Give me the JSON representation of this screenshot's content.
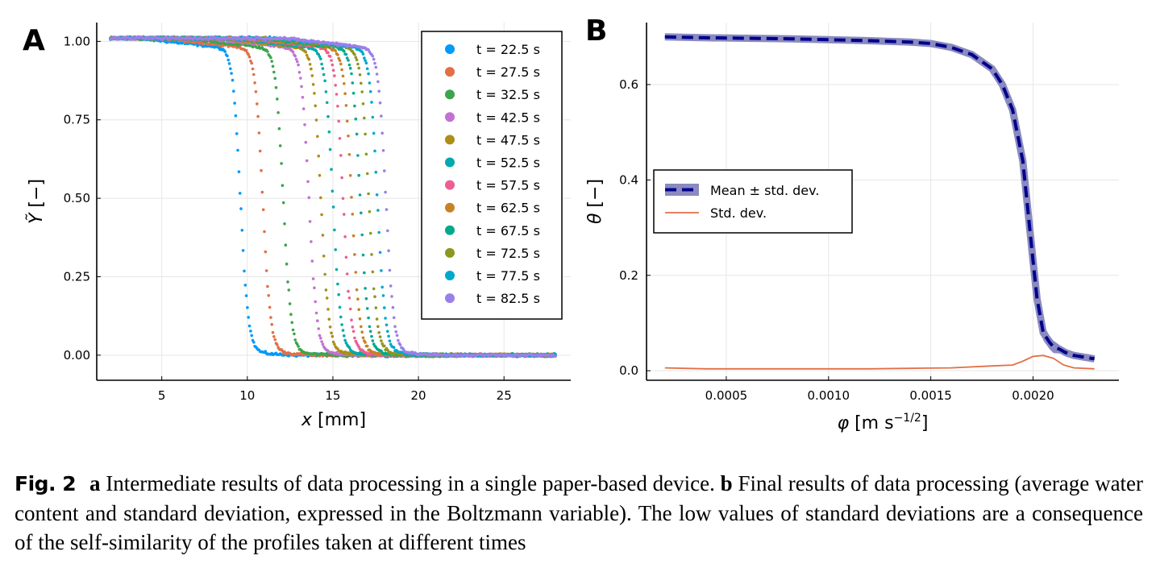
{
  "chart_data": [
    {
      "type": "scatter",
      "panel": "A",
      "xlabel": "x [mm]",
      "ylabel": "Ỹ [−]",
      "xlim": [
        1.2,
        28.9
      ],
      "ylim": [
        -0.08,
        1.06
      ],
      "xticks": [
        "5",
        "10",
        "15",
        "20",
        "25"
      ],
      "yticks": [
        "0.00",
        "0.25",
        "0.50",
        "0.75",
        "1.00"
      ],
      "grid": true,
      "legend_position": "top-right",
      "x_range_data": [
        2.0,
        28.0
      ],
      "series": [
        {
          "name": "t = 22.5 s",
          "time": 22.5,
          "front_x": 9.6,
          "color": "#009AF9"
        },
        {
          "name": "t = 27.5 s",
          "time": 27.5,
          "front_x": 10.9,
          "color": "#E26F46"
        },
        {
          "name": "t = 32.5 s",
          "time": 32.5,
          "front_x": 12.1,
          "color": "#3DA44D"
        },
        {
          "name": "t = 42.5 s",
          "time": 42.5,
          "front_x": 13.6,
          "color": "#C271D2"
        },
        {
          "name": "t = 47.5 s",
          "time": 47.5,
          "front_x": 14.3,
          "color": "#AC8E18"
        },
        {
          "name": "t = 52.5 s",
          "time": 52.5,
          "front_x": 15.0,
          "color": "#00A9AD"
        },
        {
          "name": "t = 57.5 s",
          "time": 57.5,
          "front_x": 15.6,
          "color": "#ED5E93"
        },
        {
          "name": "t = 62.5 s",
          "time": 62.5,
          "front_x": 16.1,
          "color": "#C68225"
        },
        {
          "name": "t = 67.5 s",
          "time": 67.5,
          "front_x": 16.6,
          "color": "#00A98D"
        },
        {
          "name": "t = 72.5 s",
          "time": 72.5,
          "front_x": 17.1,
          "color": "#8E971E"
        },
        {
          "name": "t = 77.5 s",
          "time": 77.5,
          "front_x": 17.6,
          "color": "#00A8CB"
        },
        {
          "name": "t = 82.5 s",
          "time": 82.5,
          "front_x": 18.1,
          "color": "#9B7FE9"
        }
      ]
    },
    {
      "type": "line",
      "panel": "B",
      "xlabel": "φ [m s^(−1/2)]",
      "ylabel": "θ [−]",
      "xlim": [
        0.00011,
        0.00242
      ],
      "ylim": [
        -0.02,
        0.73
      ],
      "xticks": [
        "0.0005",
        "0.0010",
        "0.0015",
        "0.0020"
      ],
      "yticks": [
        "0.0",
        "0.2",
        "0.4",
        "0.6"
      ],
      "grid": true,
      "legend_position": "middle-left",
      "series": [
        {
          "name": "Mean ± std. dev.",
          "color": "#00008B",
          "band_color": "#8A8AC0",
          "x": [
            0.0002,
            0.0004,
            0.0006,
            0.0008,
            0.001,
            0.0012,
            0.0014,
            0.0015,
            0.0016,
            0.0017,
            0.0018,
            0.00185,
            0.0019,
            0.00195,
            0.002,
            0.00202,
            0.00205,
            0.00208,
            0.0021,
            0.00213,
            0.00216,
            0.0022,
            0.0023
          ],
          "y": [
            0.7,
            0.698,
            0.697,
            0.696,
            0.694,
            0.692,
            0.689,
            0.686,
            0.678,
            0.663,
            0.633,
            0.6,
            0.547,
            0.44,
            0.23,
            0.15,
            0.08,
            0.06,
            0.05,
            0.045,
            0.038,
            0.032,
            0.025
          ]
        },
        {
          "name": "Std. dev.",
          "color": "#E26F46",
          "x": [
            0.0002,
            0.0004,
            0.0006,
            0.0008,
            0.001,
            0.0012,
            0.0014,
            0.0016,
            0.0018,
            0.0019,
            0.00195,
            0.002,
            0.00205,
            0.0021,
            0.00215,
            0.0022,
            0.0023
          ],
          "y": [
            0.006,
            0.004,
            0.004,
            0.004,
            0.004,
            0.004,
            0.005,
            0.006,
            0.01,
            0.012,
            0.02,
            0.03,
            0.032,
            0.026,
            0.012,
            0.006,
            0.004
          ]
        }
      ]
    }
  ],
  "caption": {
    "label": "Fig. 2",
    "part_a_letter": "a",
    "part_a_text": "Intermediate results of data processing in a single paper-based device.",
    "part_b_letter": "b",
    "part_b_text": "Final results of data processing (average water content and standard deviation, expressed in the Boltzmann variable). The low values of standard deviations are a consequence of the self-similarity of the profiles taken at different times"
  }
}
